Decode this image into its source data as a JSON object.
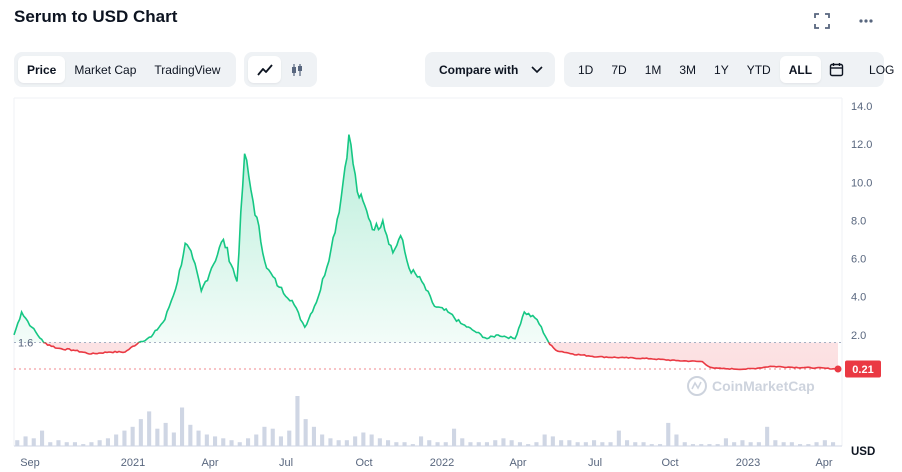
{
  "title": "Serum to USD Chart",
  "toolbar": {
    "view_tabs": [
      "Price",
      "Market Cap",
      "TradingView"
    ],
    "active_view": "Price",
    "compare_label": "Compare with",
    "ranges": [
      "1D",
      "7D",
      "1M",
      "3M",
      "1Y",
      "YTD",
      "ALL"
    ],
    "active_range": "ALL",
    "log_label": "LOG"
  },
  "icons": {
    "fullscreen": "fullscreen-icon",
    "more": "more-horizontal-icon",
    "line_chart": "line-chart-icon",
    "candlestick": "candlestick-icon",
    "chevron": "chevron-down-icon",
    "calendar": "calendar-icon"
  },
  "watermark": "CoinMarketCap",
  "colors": {
    "up": "#16c784",
    "down": "#ea3943",
    "accent": "#3861fb"
  },
  "chart_data": {
    "type": "area",
    "y_axis": {
      "ticks": [
        "14.0",
        "12.0",
        "10.0",
        "8.0",
        "6.0",
        "4.0",
        "2.0"
      ],
      "unit": "USD",
      "range": [
        0,
        14
      ]
    },
    "x_axis": {
      "ticks": [
        "Sep",
        "2021",
        "Apr",
        "Jul",
        "Oct",
        "2022",
        "Apr",
        "Jul",
        "Oct",
        "2023",
        "Apr"
      ]
    },
    "baseline": {
      "value": 1.6,
      "label": "1.6"
    },
    "current_price": {
      "value": 0.21,
      "label": "0.21"
    },
    "series": [
      {
        "x": [
          "2020-08-11",
          "2020-08-20",
          "2020-09-01",
          "2020-09-15",
          "2020-10-01",
          "2020-10-20",
          "2020-11-10",
          "2020-12-01",
          "2020-12-20",
          "2021-01-05",
          "2021-01-20",
          "2021-02-05",
          "2021-02-20",
          "2021-03-01",
          "2021-03-10",
          "2021-03-20",
          "2021-04-01",
          "2021-04-15",
          "2021-05-01",
          "2021-05-10",
          "2021-05-20",
          "2021-06-05",
          "2021-06-20",
          "2021-07-05",
          "2021-07-20",
          "2021-08-05",
          "2021-08-20",
          "2021-09-01",
          "2021-09-10",
          "2021-09-20",
          "2021-10-01",
          "2021-10-10",
          "2021-10-20",
          "2021-11-01",
          "2021-11-10",
          "2021-11-20",
          "2021-12-05",
          "2021-12-20",
          "2022-01-05",
          "2022-01-20",
          "2022-02-05",
          "2022-02-20",
          "2022-03-05",
          "2022-03-25",
          "2022-04-05",
          "2022-04-20",
          "2022-05-05",
          "2022-05-12",
          "2022-06-01",
          "2022-07-01",
          "2022-08-01",
          "2022-09-01",
          "2022-10-01",
          "2022-11-01",
          "2022-11-08",
          "2022-11-15",
          "2022-12-01",
          "2022-12-20",
          "2023-01-05",
          "2023-01-20",
          "2023-02-15",
          "2023-03-15",
          "2023-04-10"
        ],
        "values": [
          2.0,
          3.2,
          2.4,
          1.6,
          1.3,
          1.2,
          1.0,
          1.1,
          1.1,
          1.6,
          1.9,
          2.8,
          4.8,
          6.8,
          6.0,
          4.3,
          5.5,
          7.0,
          4.8,
          11.5,
          9.0,
          5.5,
          4.5,
          3.8,
          2.4,
          4.0,
          6.5,
          9.2,
          12.5,
          9.5,
          8.5,
          7.5,
          8.0,
          6.3,
          7.2,
          5.5,
          4.8,
          3.5,
          3.2,
          2.6,
          2.2,
          1.8,
          2.0,
          1.8,
          3.2,
          2.8,
          1.5,
          1.2,
          1.0,
          0.85,
          0.8,
          0.75,
          0.65,
          0.6,
          0.35,
          0.25,
          0.22,
          0.2,
          0.25,
          0.35,
          0.3,
          0.27,
          0.21
        ]
      }
    ],
    "volume": [
      3,
      5,
      4,
      8,
      2,
      3,
      2,
      2,
      1,
      2,
      3,
      4,
      6,
      8,
      10,
      14,
      18,
      9,
      12,
      7,
      20,
      11,
      8,
      6,
      5,
      4,
      3,
      2,
      4,
      6,
      10,
      9,
      5,
      8,
      26,
      14,
      10,
      6,
      4,
      3,
      3,
      5,
      7,
      6,
      4,
      3,
      2,
      2,
      1,
      5,
      3,
      2,
      2,
      9,
      4,
      2,
      2,
      2,
      3,
      4,
      3,
      2,
      1,
      2,
      6,
      5,
      3,
      3,
      2,
      2,
      3,
      2,
      2,
      8,
      3,
      2,
      2,
      1,
      1,
      12,
      6,
      2,
      1,
      1,
      1,
      1,
      4,
      2,
      3,
      2,
      2,
      10,
      3,
      2,
      2,
      1,
      1,
      2,
      3,
      2
    ]
  }
}
